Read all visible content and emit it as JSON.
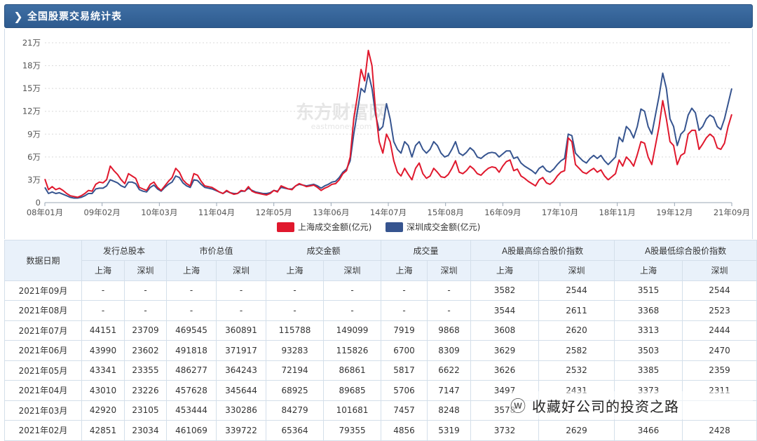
{
  "header": {
    "title": "全国股票交易统计表",
    "icon": "chevron-right-icon"
  },
  "chart_data": {
    "type": "line",
    "x_tick_labels": [
      "08年01月",
      "09年02月",
      "10年03月",
      "11年04月",
      "12年05月",
      "13年06月",
      "14年07月",
      "15年08月",
      "16年09月",
      "17年10月",
      "18年11月",
      "19年12月",
      "21年09月"
    ],
    "y_tick_labels": [
      "0",
      "3万",
      "6万",
      "9万",
      "12万",
      "15万",
      "18万",
      "21万"
    ],
    "ylim": [
      0,
      210000
    ],
    "grid": true,
    "legend_position": "bottom-center",
    "series": [
      {
        "name": "上海成交金额(亿元)",
        "color": "#e0182d",
        "values": [
          31000,
          17000,
          21000,
          17000,
          19000,
          16000,
          12000,
          9000,
          8000,
          7000,
          9000,
          12000,
          16000,
          15000,
          24000,
          27000,
          26000,
          30000,
          48000,
          42000,
          37000,
          30000,
          25000,
          38000,
          35000,
          32000,
          20000,
          18000,
          16000,
          24000,
          27000,
          20000,
          16000,
          22000,
          28000,
          33000,
          45000,
          40000,
          30000,
          25000,
          22000,
          38000,
          36000,
          28000,
          22000,
          21000,
          20000,
          17000,
          14000,
          12000,
          16000,
          13000,
          11000,
          12000,
          16000,
          15000,
          21000,
          15000,
          13000,
          12000,
          11000,
          10000,
          12000,
          16000,
          14000,
          22000,
          20000,
          18000,
          17000,
          22000,
          25000,
          23000,
          21000,
          22000,
          23000,
          20000,
          16000,
          19000,
          21000,
          24000,
          25000,
          30000,
          38000,
          42000,
          60000,
          110000,
          140000,
          175000,
          160000,
          200000,
          180000,
          120000,
          80000,
          65000,
          90000,
          80000,
          55000,
          40000,
          35000,
          45000,
          37000,
          30000,
          45000,
          52000,
          38000,
          32000,
          35000,
          45000,
          40000,
          34000,
          33000,
          37000,
          45000,
          55000,
          40000,
          38000,
          42000,
          48000,
          44000,
          38000,
          36000,
          41000,
          45000,
          47000,
          46000,
          40000,
          48000,
          54000,
          56000,
          42000,
          44000,
          35000,
          32000,
          28000,
          25000,
          22000,
          30000,
          33000,
          26000,
          24000,
          28000,
          35000,
          40000,
          42000,
          85000,
          80000,
          50000,
          45000,
          40000,
          38000,
          42000,
          45000,
          40000,
          43000,
          35000,
          30000,
          34000,
          38000,
          56000,
          48000,
          60000,
          55000,
          48000,
          63000,
          80000,
          78000,
          60000,
          50000,
          75000,
          100000,
          134000,
          110000,
          80000,
          75000,
          50000,
          62000,
          65000,
          90000,
          95000,
          95000,
          70000,
          77000,
          85000,
          90000,
          86000,
          72000,
          70000,
          78000,
          100000,
          116000
        ]
      },
      {
        "name": "深圳成交金额(亿元)",
        "color": "#36548f",
        "values": [
          20000,
          12000,
          14000,
          12000,
          13000,
          11000,
          9000,
          7000,
          6000,
          6000,
          7000,
          9000,
          12000,
          12000,
          18000,
          19000,
          19000,
          22000,
          30000,
          28000,
          26000,
          22000,
          20000,
          27000,
          27000,
          25000,
          17000,
          15000,
          14000,
          20000,
          23000,
          18000,
          15000,
          20000,
          24000,
          27000,
          35000,
          33000,
          26000,
          22000,
          20000,
          30000,
          29000,
          24000,
          20000,
          19000,
          18000,
          16000,
          14000,
          12000,
          15000,
          13000,
          12000,
          12000,
          15000,
          15000,
          19000,
          16000,
          14000,
          13000,
          12000,
          12000,
          13000,
          16000,
          15000,
          20000,
          19000,
          18000,
          18000,
          22000,
          24000,
          23000,
          22000,
          23000,
          24000,
          22000,
          19000,
          22000,
          24000,
          27000,
          28000,
          33000,
          40000,
          44000,
          55000,
          90000,
          120000,
          150000,
          145000,
          170000,
          150000,
          115000,
          95000,
          100000,
          130000,
          110000,
          80000,
          70000,
          65000,
          80000,
          75000,
          60000,
          75000,
          80000,
          70000,
          65000,
          70000,
          80000,
          75000,
          65000,
          60000,
          62000,
          70000,
          80000,
          65000,
          62000,
          66000,
          72000,
          68000,
          60000,
          58000,
          62000,
          65000,
          66000,
          65000,
          60000,
          64000,
          68000,
          68000,
          58000,
          60000,
          52000,
          48000,
          45000,
          42000,
          38000,
          45000,
          48000,
          42000,
          40000,
          44000,
          50000,
          55000,
          58000,
          90000,
          88000,
          65000,
          60000,
          55000,
          52000,
          58000,
          62000,
          58000,
          62000,
          55000,
          50000,
          55000,
          60000,
          86000,
          80000,
          100000,
          95000,
          85000,
          100000,
          123000,
          120000,
          100000,
          90000,
          115000,
          140000,
          170000,
          150000,
          110000,
          100000,
          75000,
          90000,
          95000,
          115000,
          124000,
          118000,
          95000,
          100000,
          110000,
          115000,
          112000,
          100000,
          96000,
          110000,
          130000,
          150000
        ]
      }
    ]
  },
  "watermark": {
    "brand": "东方财富网",
    "domain": "eastmoney.com"
  },
  "table": {
    "header_row1": {
      "date": "数据日期",
      "groups": [
        "发行总股本",
        "市价总值",
        "成交金额",
        "成交量",
        "A股最高综合股价指数",
        "A股最低综合股价指数"
      ]
    },
    "header_row2": [
      "上海",
      "深圳",
      "上海",
      "深圳",
      "上海",
      "深圳",
      "上海",
      "深圳",
      "上海",
      "深圳",
      "上海",
      "深圳"
    ],
    "rows": [
      [
        "2021年09月",
        "-",
        "-",
        "-",
        "-",
        "-",
        "-",
        "-",
        "-",
        "3582",
        "2544",
        "3515",
        "2544"
      ],
      [
        "2021年08月",
        "-",
        "-",
        "-",
        "-",
        "-",
        "-",
        "-",
        "-",
        "3544",
        "2611",
        "3368",
        "2523"
      ],
      [
        "2021年07月",
        "44151",
        "23709",
        "469545",
        "360891",
        "115788",
        "149099",
        "7919",
        "9868",
        "3608",
        "2620",
        "3313",
        "2444"
      ],
      [
        "2021年06月",
        "43990",
        "23602",
        "491818",
        "371917",
        "93283",
        "115826",
        "6700",
        "8309",
        "3629",
        "2582",
        "3503",
        "2470"
      ],
      [
        "2021年05月",
        "43341",
        "23355",
        "486277",
        "364243",
        "72194",
        "86861",
        "5817",
        "6622",
        "3626",
        "2532",
        "3385",
        "2359"
      ],
      [
        "2021年04月",
        "43010",
        "23226",
        "457628",
        "345644",
        "68925",
        "89685",
        "5706",
        "7147",
        "3497",
        "2431",
        "3373",
        "2311"
      ],
      [
        "2021年03月",
        "42920",
        "23105",
        "453444",
        "330286",
        "84279",
        "101681",
        "7457",
        "8248",
        "3578",
        "",
        "",
        ""
      ],
      [
        "2021年02月",
        "42851",
        "23034",
        "461069",
        "339722",
        "65364",
        "79355",
        "4856",
        "5319",
        "3732",
        "2629",
        "3466",
        "2428"
      ]
    ]
  },
  "footer": {
    "icon": "wechat-icon",
    "text": "收藏好公司的投资之路"
  }
}
